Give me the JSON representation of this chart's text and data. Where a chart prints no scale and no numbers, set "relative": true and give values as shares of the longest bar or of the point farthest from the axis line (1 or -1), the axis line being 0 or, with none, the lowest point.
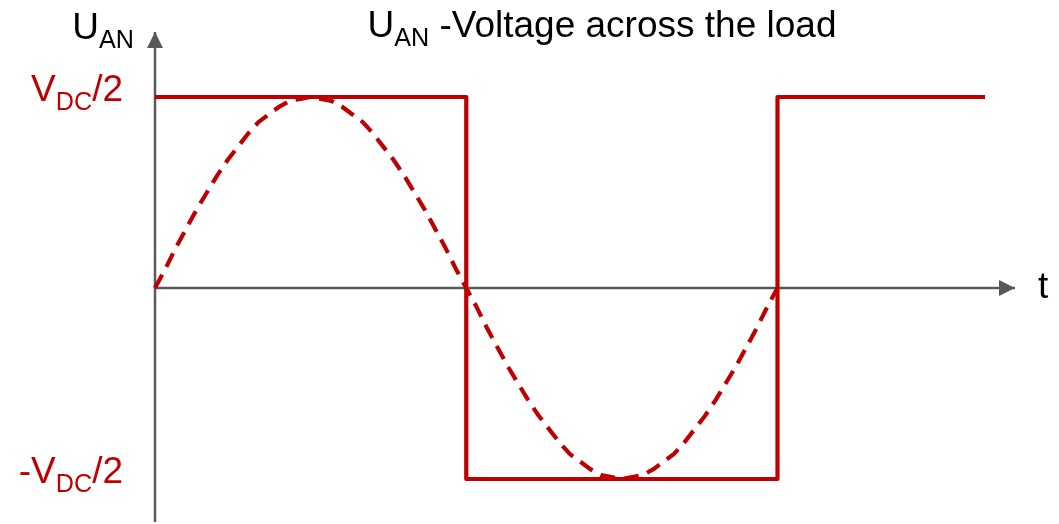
{
  "chart_data": {
    "type": "line",
    "relative": true,
    "title": "U$_{AN}$ -Voltage across the load",
    "xlabel": "t",
    "ylabel": "U$_{AN}$",
    "annotations": [
      "V$_{DC}$/2",
      "-V$_{DC}$/2"
    ],
    "categories": [
      null,
      null,
      null,
      null,
      null,
      null,
      null,
      null,
      null,
      null,
      null,
      null,
      null,
      null,
      null,
      null,
      null,
      null,
      null,
      null,
      null,
      null,
      null,
      null,
      null,
      null,
      null,
      null,
      null,
      null,
      null,
      null,
      null,
      null,
      null,
      null,
      null,
      null,
      null,
      null,
      null,
      null,
      null,
      null,
      null,
      null,
      null,
      null,
      null,
      null,
      null,
      null,
      null,
      null,
      null,
      null,
      null,
      null,
      null,
      null,
      null,
      null,
      null,
      null,
      null,
      null,
      null,
      null,
      null,
      null,
      null,
      null,
      null,
      null,
      null,
      null,
      null,
      null,
      null,
      null,
      null
    ],
    "series": [
      {
        "type": "step",
        "color": "#c00000",
        "line_style": "solid",
        "values": [
          1,
          1,
          1,
          1,
          1,
          1,
          1,
          1,
          1,
          1,
          1,
          1,
          1,
          1,
          1,
          1,
          1,
          1,
          1,
          1,
          1,
          1,
          1,
          1,
          1,
          1,
          1,
          1,
          1,
          1,
          -1,
          -1,
          -1,
          -1,
          -1,
          -1,
          -1,
          -1,
          -1,
          -1,
          -1,
          -1,
          -1,
          -1,
          -1,
          -1,
          -1,
          -1,
          -1,
          -1,
          -1,
          -1,
          -1,
          -1,
          -1,
          -1,
          -1,
          -1,
          -1,
          -1,
          1,
          1,
          1,
          1,
          1,
          1,
          1,
          1,
          1,
          1,
          1,
          1,
          1,
          1,
          1,
          1,
          1,
          1,
          1,
          1,
          1
        ]
      },
      {
        "color": "#c00000",
        "line_style": "dashed",
        "values": [
          0,
          0.1,
          0.21,
          0.31,
          0.41,
          0.5,
          0.59,
          0.67,
          0.74,
          0.81,
          0.87,
          0.91,
          0.95,
          0.98,
          0.99,
          1,
          0.99,
          0.98,
          0.95,
          0.91,
          0.87,
          0.81,
          0.74,
          0.67,
          0.59,
          0.5,
          0.41,
          0.31,
          0.21,
          0.1,
          0,
          -0.1,
          -0.21,
          -0.31,
          -0.41,
          -0.5,
          -0.59,
          -0.67,
          -0.74,
          -0.81,
          -0.87,
          -0.91,
          -0.95,
          -0.98,
          -0.99,
          -1,
          -0.99,
          -0.98,
          -0.95,
          -0.91,
          -0.87,
          -0.81,
          -0.74,
          -0.67,
          -0.59,
          -0.5,
          -0.41,
          -0.31,
          -0.21,
          -0.1,
          0,
          null,
          null,
          null,
          null,
          null,
          null,
          null,
          null,
          null,
          null,
          null,
          null,
          null,
          null,
          null,
          null,
          null,
          null,
          null,
          null
        ]
      }
    ]
  }
}
